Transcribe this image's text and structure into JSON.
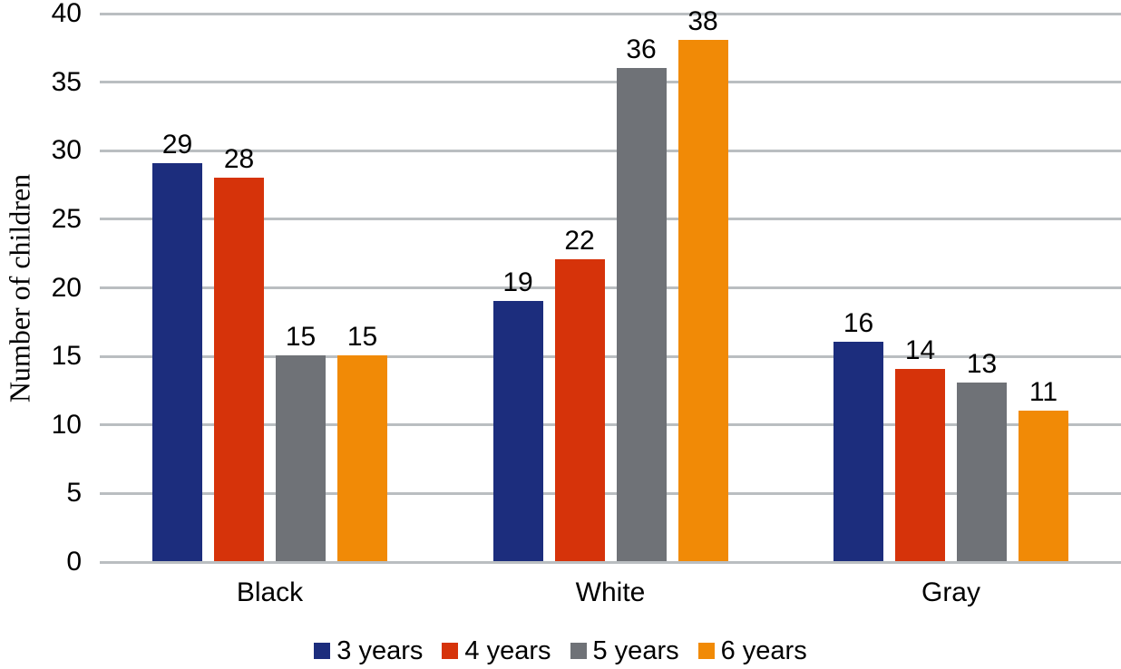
{
  "chart_data": {
    "type": "bar",
    "title": "",
    "xlabel": "",
    "ylabel": "Number of children",
    "categories": [
      "Black",
      "White",
      "Gray"
    ],
    "series": [
      {
        "name": "3 years",
        "color": "#1c2d7d",
        "values": [
          29,
          19,
          16
        ]
      },
      {
        "name": "4 years",
        "color": "#d6330a",
        "values": [
          28,
          22,
          14
        ]
      },
      {
        "name": "5 years",
        "color": "#6f7277",
        "values": [
          15,
          36,
          13
        ]
      },
      {
        "name": "6 years",
        "color": "#f18a06",
        "values": [
          15,
          38,
          11
        ]
      }
    ],
    "ylim": [
      0,
      40
    ],
    "yticks": [
      0,
      5,
      10,
      15,
      20,
      25,
      30,
      35,
      40
    ],
    "grid": true,
    "gridline_color": "#babec1",
    "baseline_color": "#babec1",
    "data_labels": true,
    "legend_position": "bottom",
    "background": "#ffffff",
    "text_color": "#000000"
  }
}
